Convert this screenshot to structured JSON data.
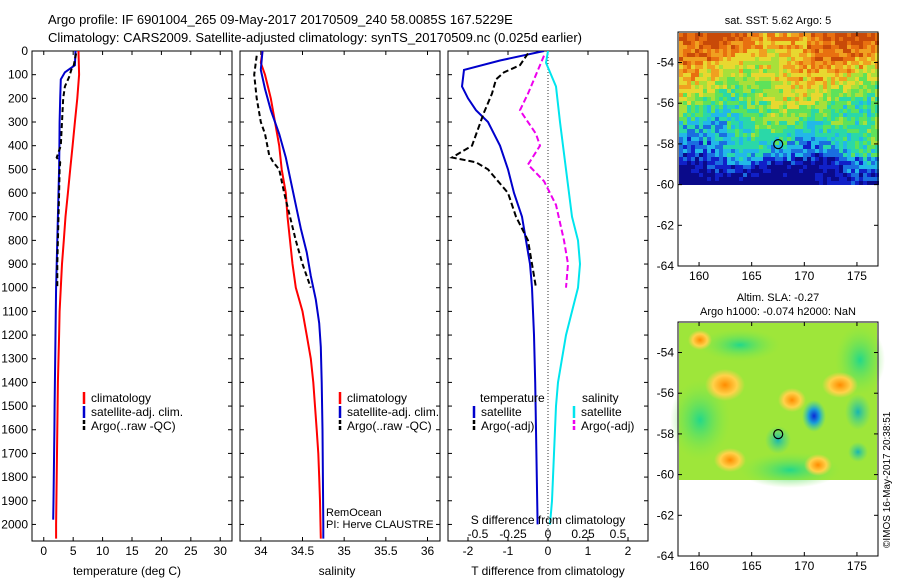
{
  "header": {
    "line1": "Argo profile: IF 6901004_265 09-May-2017 20170509_240 58.0085S 167.5229E",
    "line2": "Climatology: CARS2009. Satellite-adjusted climatology: synTS_20170509.nc (0.025d earlier)"
  },
  "colors": {
    "climatology": "#ff0000",
    "satellite": "#0000cc",
    "argo": "#000000",
    "satellite_salinity": "#00e5ee",
    "argo_salinity_diff": "#ee00ee"
  },
  "chart_data": [
    {
      "type": "line",
      "name": "temperature-profile",
      "xlabel": "temperature (deg C)",
      "ylabel": "",
      "xlim": [
        -2,
        32
      ],
      "ylim": [
        2070,
        0
      ],
      "xticks": [
        0,
        5,
        10,
        15,
        20,
        25,
        30
      ],
      "yticks": [
        0,
        100,
        200,
        300,
        400,
        500,
        600,
        700,
        800,
        900,
        1000,
        1100,
        1200,
        1300,
        1400,
        1500,
        1600,
        1700,
        1800,
        1900,
        2000
      ],
      "legend": [
        "climatology",
        "satellite-adj. clim.",
        "Argo(..raw -QC)"
      ],
      "legend_placement": "lower-center",
      "series": [
        {
          "name": "climatology",
          "color": "#ff0000",
          "dash": "",
          "points": [
            [
              5.9,
              0
            ],
            [
              6.0,
              100
            ],
            [
              5.7,
              200
            ],
            [
              5.3,
              300
            ],
            [
              4.9,
              400
            ],
            [
              4.5,
              500
            ],
            [
              4.1,
              600
            ],
            [
              3.7,
              700
            ],
            [
              3.4,
              800
            ],
            [
              3.1,
              900
            ],
            [
              2.9,
              1000
            ],
            [
              2.7,
              1100
            ],
            [
              2.6,
              1200
            ],
            [
              2.5,
              1300
            ],
            [
              2.4,
              1400
            ],
            [
              2.35,
              1500
            ],
            [
              2.3,
              1600
            ],
            [
              2.25,
              1700
            ],
            [
              2.2,
              1800
            ],
            [
              2.15,
              1900
            ],
            [
              2.1,
              2000
            ],
            [
              2.1,
              2060
            ]
          ]
        },
        {
          "name": "satellite-adj. clim.",
          "color": "#0000cc",
          "dash": "",
          "points": [
            [
              5.4,
              0
            ],
            [
              5.3,
              60
            ],
            [
              3.6,
              90
            ],
            [
              2.9,
              120
            ],
            [
              2.8,
              200
            ],
            [
              2.7,
              300
            ],
            [
              2.65,
              400
            ],
            [
              2.6,
              500
            ],
            [
              2.5,
              600
            ],
            [
              2.4,
              700
            ],
            [
              2.3,
              800
            ],
            [
              2.2,
              900
            ],
            [
              2.1,
              1000
            ],
            [
              2.05,
              1100
            ],
            [
              2.0,
              1200
            ],
            [
              1.95,
              1300
            ],
            [
              1.9,
              1400
            ],
            [
              1.85,
              1500
            ],
            [
              1.8,
              1600
            ],
            [
              1.75,
              1700
            ],
            [
              1.7,
              1800
            ],
            [
              1.65,
              1900
            ],
            [
              1.6,
              1980
            ]
          ]
        },
        {
          "name": "Argo(..raw -QC)",
          "color": "#000000",
          "dash": "5,3",
          "points": [
            [
              5.5,
              10
            ],
            [
              5.1,
              60
            ],
            [
              4.8,
              70
            ],
            [
              4.3,
              110
            ],
            [
              3.6,
              150
            ],
            [
              3.3,
              200
            ],
            [
              3.1,
              300
            ],
            [
              2.9,
              400
            ],
            [
              2.2,
              450
            ],
            [
              2.8,
              470
            ],
            [
              2.7,
              500
            ],
            [
              2.6,
              600
            ],
            [
              2.5,
              700
            ],
            [
              2.4,
              800
            ],
            [
              2.3,
              900
            ],
            [
              2.3,
              1000
            ]
          ]
        }
      ]
    },
    {
      "type": "line",
      "name": "salinity-profile",
      "xlabel": "salinity",
      "ylabel": "",
      "xlim": [
        33.75,
        36.15
      ],
      "ylim": [
        2070,
        0
      ],
      "xticks": [
        34,
        34.5,
        35,
        35.5,
        36
      ],
      "yticks": [],
      "legend": [
        "climatology",
        "satellite-adj. clim.",
        "Argo(..raw -QC)"
      ],
      "legend_placement": "lower-center",
      "annotations": [
        "RemOcean",
        "PI: Herve CLAUSTRE"
      ],
      "series": [
        {
          "name": "climatology",
          "color": "#ff0000",
          "dash": "",
          "points": [
            [
              34.02,
              0
            ],
            [
              34.0,
              50
            ],
            [
              34.05,
              100
            ],
            [
              34.12,
              200
            ],
            [
              34.17,
              300
            ],
            [
              34.22,
              400
            ],
            [
              34.25,
              500
            ],
            [
              34.3,
              600
            ],
            [
              34.32,
              700
            ],
            [
              34.35,
              800
            ],
            [
              34.38,
              900
            ],
            [
              34.42,
              1000
            ],
            [
              34.5,
              1100
            ],
            [
              34.55,
              1200
            ],
            [
              34.6,
              1300
            ],
            [
              34.63,
              1400
            ],
            [
              34.65,
              1500
            ],
            [
              34.67,
              1600
            ],
            [
              34.69,
              1700
            ],
            [
              34.7,
              1800
            ],
            [
              34.71,
              1900
            ],
            [
              34.72,
              2060
            ]
          ]
        },
        {
          "name": "satellite-adj. clim.",
          "color": "#0000cc",
          "dash": "",
          "points": [
            [
              34.02,
              0
            ],
            [
              34.0,
              80
            ],
            [
              34.05,
              160
            ],
            [
              34.12,
              250
            ],
            [
              34.22,
              350
            ],
            [
              34.3,
              450
            ],
            [
              34.36,
              550
            ],
            [
              34.42,
              650
            ],
            [
              34.48,
              750
            ],
            [
              34.55,
              850
            ],
            [
              34.6,
              950
            ],
            [
              34.66,
              1050
            ],
            [
              34.7,
              1150
            ],
            [
              34.72,
              1250
            ],
            [
              34.73,
              1400
            ],
            [
              34.74,
              1600
            ],
            [
              34.745,
              1800
            ],
            [
              34.75,
              2000
            ],
            [
              34.75,
              2060
            ]
          ]
        },
        {
          "name": "Argo(..raw -QC)",
          "color": "#000000",
          "dash": "5,3",
          "points": [
            [
              33.95,
              20
            ],
            [
              33.92,
              100
            ],
            [
              33.95,
              200
            ],
            [
              34.0,
              300
            ],
            [
              34.05,
              350
            ],
            [
              34.1,
              440
            ],
            [
              34.15,
              470
            ],
            [
              34.22,
              500
            ],
            [
              34.28,
              600
            ],
            [
              34.35,
              700
            ],
            [
              34.42,
              800
            ],
            [
              34.5,
              900
            ],
            [
              34.6,
              1000
            ]
          ]
        }
      ]
    },
    {
      "type": "line",
      "name": "difference-profile",
      "xlabel": "T difference from climatology",
      "xlabel_top": "S difference from climatology",
      "xlim": [
        -2.5,
        2.5
      ],
      "ylim": [
        2070,
        0
      ],
      "xticks": [
        -2,
        -1,
        0,
        1,
        2
      ],
      "xticks_salinity": [
        "-0.5",
        "-0.25",
        "0",
        "0.25",
        "0.5"
      ],
      "yticks": [],
      "legend_headers": [
        "temperature",
        "salinity"
      ],
      "legend": [
        "satellite",
        "Argo(-adj)",
        "satellite",
        "Argo(-adj)"
      ],
      "legend_placement": "lower-center",
      "series": [
        {
          "name": "temperature satellite",
          "color": "#0000cc",
          "dash": "",
          "points": [
            [
              -0.1,
              0
            ],
            [
              -1.2,
              40
            ],
            [
              -2.1,
              80
            ],
            [
              -2.15,
              150
            ],
            [
              -2.0,
              200
            ],
            [
              -1.8,
              250
            ],
            [
              -1.5,
              300
            ],
            [
              -1.2,
              400
            ],
            [
              -1.0,
              500
            ],
            [
              -0.85,
              600
            ],
            [
              -0.65,
              700
            ],
            [
              -0.55,
              800
            ],
            [
              -0.45,
              900
            ],
            [
              -0.4,
              1000
            ],
            [
              -0.35,
              1200
            ],
            [
              -0.32,
              1400
            ],
            [
              -0.3,
              1600
            ],
            [
              -0.28,
              1800
            ],
            [
              -0.26,
              2000
            ]
          ]
        },
        {
          "name": "temperature Argo(-adj)",
          "color": "#000000",
          "dash": "6,3",
          "points": [
            [
              -0.5,
              10
            ],
            [
              -0.7,
              60
            ],
            [
              -1.1,
              90
            ],
            [
              -1.3,
              120
            ],
            [
              -1.4,
              180
            ],
            [
              -1.6,
              260
            ],
            [
              -1.9,
              400
            ],
            [
              -2.4,
              450
            ],
            [
              -1.8,
              470
            ],
            [
              -1.5,
              500
            ],
            [
              -1.0,
              600
            ],
            [
              -0.8,
              700
            ],
            [
              -0.5,
              800
            ],
            [
              -0.4,
              900
            ],
            [
              -0.3,
              1000
            ]
          ]
        },
        {
          "name": "salinity satellite",
          "color": "#00e5ee",
          "dash": "",
          "points": [
            [
              0,
              0
            ],
            [
              -0.05,
              50
            ],
            [
              0.2,
              150
            ],
            [
              0.3,
              300
            ],
            [
              0.45,
              500
            ],
            [
              0.6,
              700
            ],
            [
              0.75,
              800
            ],
            [
              0.8,
              900
            ],
            [
              0.75,
              1000
            ],
            [
              0.6,
              1100
            ],
            [
              0.45,
              1200
            ],
            [
              0.35,
              1300
            ],
            [
              0.25,
              1400
            ],
            [
              0.2,
              1500
            ],
            [
              0.15,
              1700
            ],
            [
              0.1,
              1900
            ],
            [
              0.05,
              2000
            ]
          ]
        },
        {
          "name": "salinity Argo(-adj)",
          "color": "#ee00ee",
          "dash": "6,3",
          "points": [
            [
              -0.1,
              20
            ],
            [
              -0.3,
              100
            ],
            [
              -0.5,
              180
            ],
            [
              -0.7,
              250
            ],
            [
              -0.3,
              350
            ],
            [
              -0.2,
              400
            ],
            [
              -0.5,
              480
            ],
            [
              -0.1,
              550
            ],
            [
              0.2,
              650
            ],
            [
              0.4,
              800
            ],
            [
              0.5,
              900
            ],
            [
              0.45,
              1000
            ]
          ]
        }
      ]
    }
  ],
  "maps": {
    "sst": {
      "title": "sat. SST: 5.62 Argo: 5",
      "xticks": [
        160,
        165,
        170,
        175
      ],
      "yticks": [
        -54,
        -56,
        -58,
        -60,
        -62,
        -64
      ],
      "xlim": [
        158,
        177
      ],
      "ylim": [
        -64,
        -52.5
      ]
    },
    "sla": {
      "title_line1": "Altim. SLA: -0.27",
      "title_line2": "Argo h1000: -0.074 h2000: NaN",
      "xticks": [
        160,
        165,
        170,
        175
      ],
      "yticks": [
        -54,
        -56,
        -58,
        -60,
        -62,
        -64
      ],
      "xlim": [
        158,
        177
      ],
      "ylim": [
        -64,
        -52.5
      ]
    },
    "argo_position": {
      "lon": 167.52,
      "lat": -58.01
    }
  },
  "footer": {
    "timestamp": "©IMOS 16-May-2017 20:38:51"
  }
}
